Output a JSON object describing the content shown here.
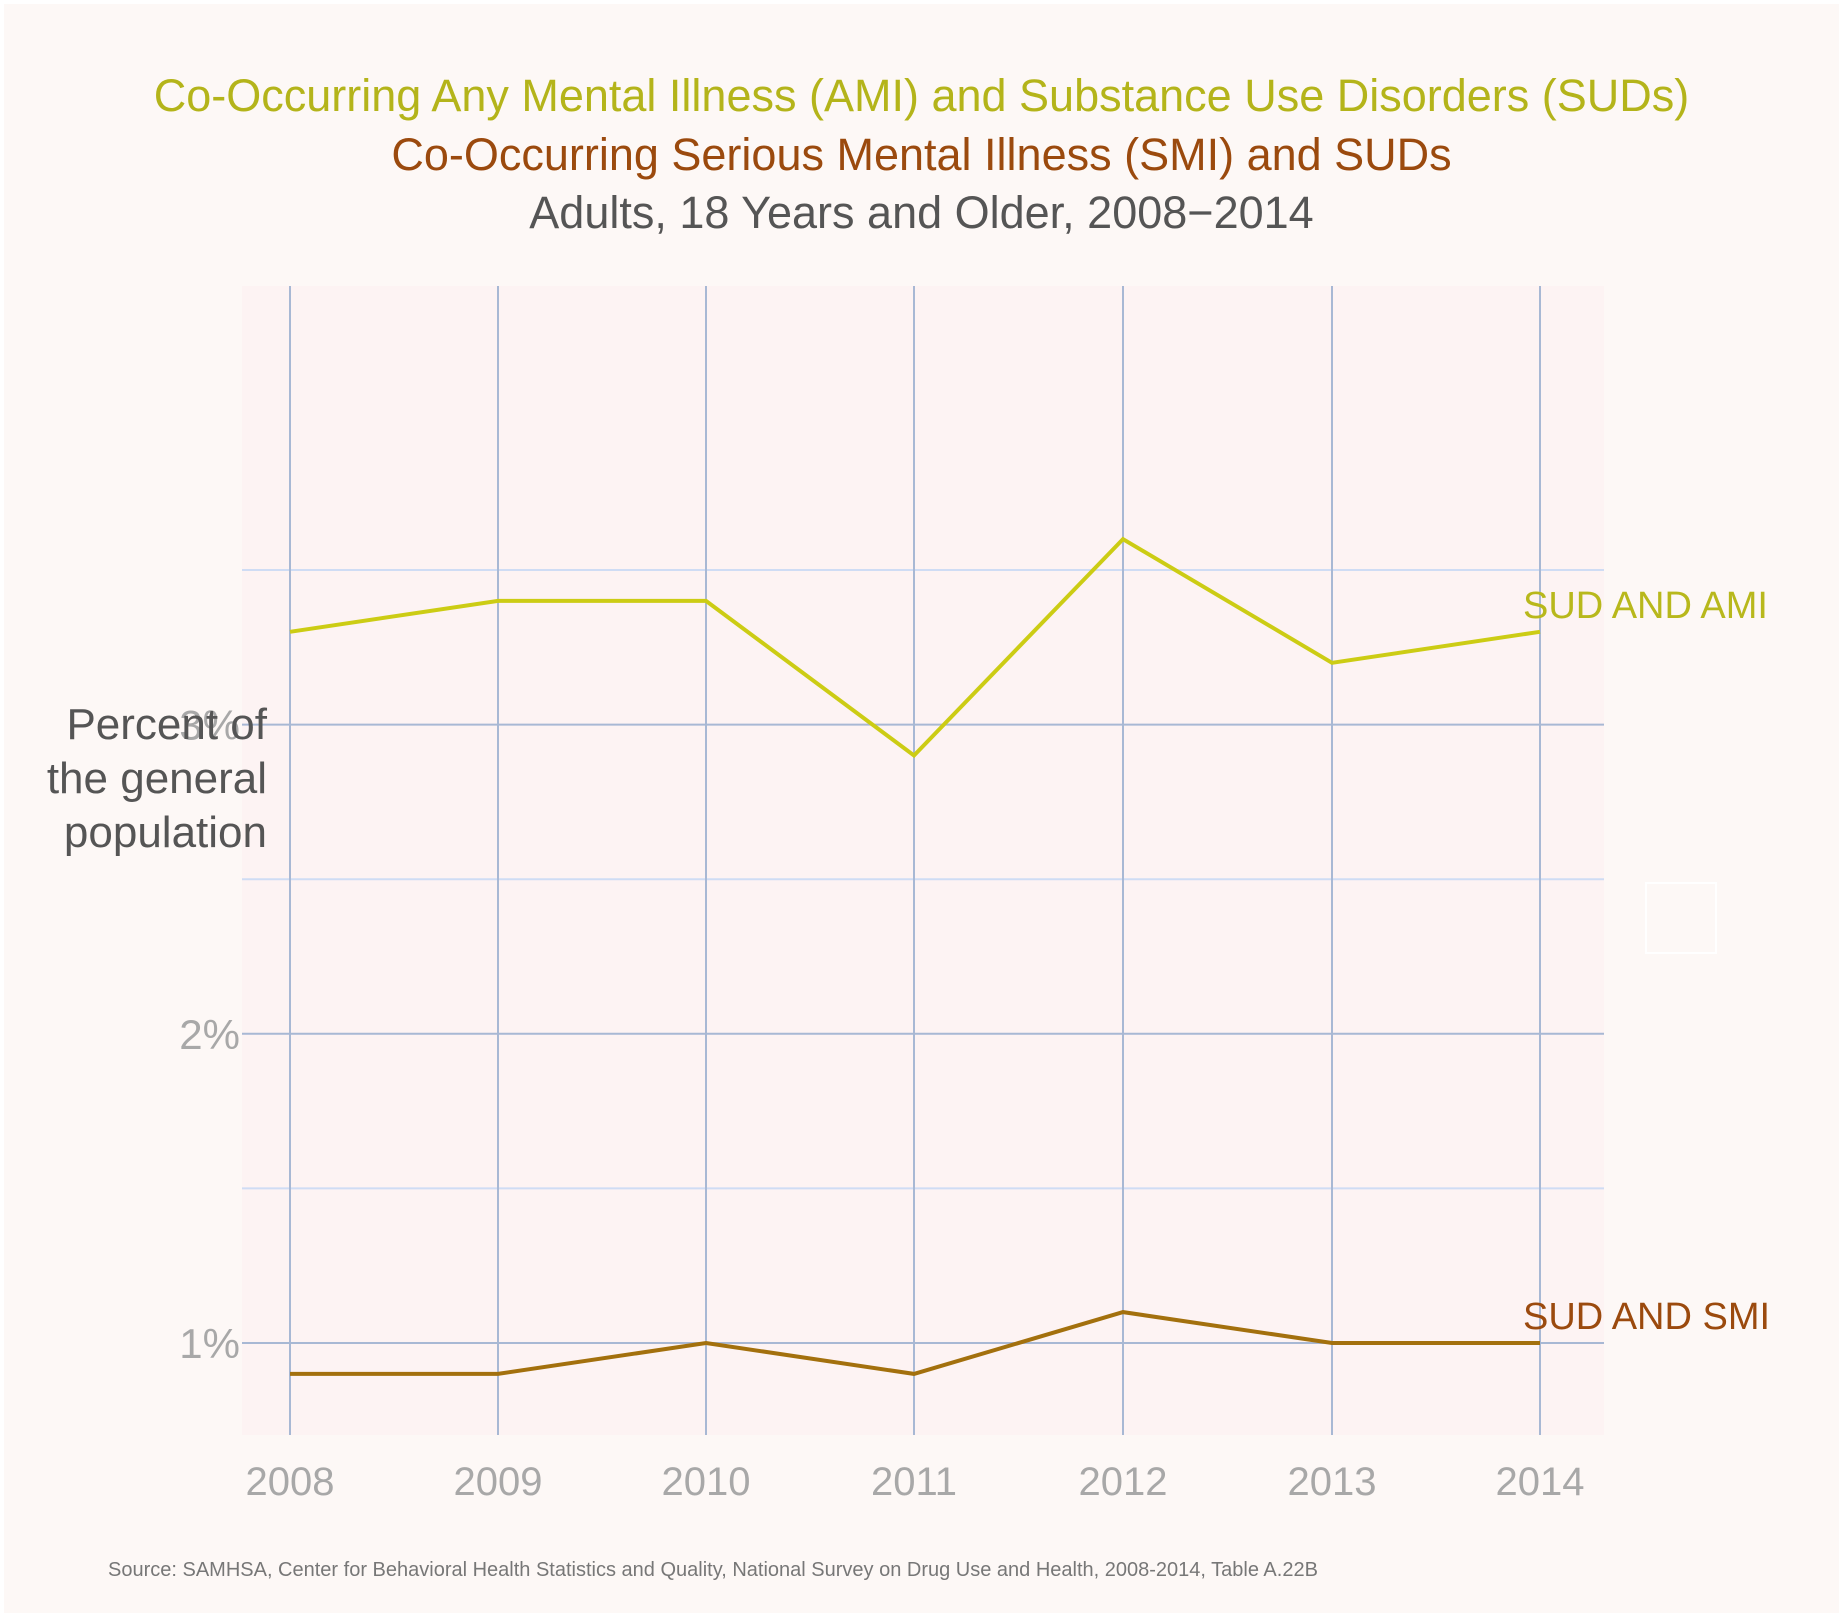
{
  "colors": {
    "background": "#fdf8f6",
    "plot_background": "#fdf3f3",
    "major_grid": "#a8b8d4",
    "minor_grid": "#cfdcf4",
    "tick_text": "#a8a8a8",
    "axis_title": "#555555",
    "ami_title": "#b4b41a",
    "smi_title": "#9b4a0e",
    "ami_line": "#cccc14",
    "smi_line": "#a3700d",
    "ami_label": "#b8b81c",
    "smi_label": "#9b4a0e"
  },
  "chart_data": {
    "type": "line",
    "title": "Co-Occurring Any Mental Illness (AMI) and Substance Use Disorders (SUDs)",
    "title_line2": "Co-Occurring Serious Mental Illness (SMI) and SUDs",
    "subtitle": "Adults, 18 Years and Older, 2008−2014",
    "xlabel": "",
    "ylabel": "Percent of\nthe general\npopulation",
    "source": "Source: SAMHSA, Center for Behavioral Health Statistics and Quality, National Survey on Drug Use and Health, 2008-2014, Table A.22B",
    "x": [
      "2008",
      "2009",
      "2010",
      "2011",
      "2012",
      "2013",
      "2014"
    ],
    "ylim": [
      0.8,
      3.8
    ],
    "yticks": [
      1,
      2,
      3
    ],
    "ytick_labels": [
      "1%",
      "2%",
      "3%"
    ],
    "grid": true,
    "legend": "direct labels at line ends (right)",
    "series": [
      {
        "name": "SUD AND AMI",
        "values": [
          3.3,
          3.4,
          3.4,
          2.9,
          3.6,
          3.2,
          3.3
        ]
      },
      {
        "name": "SUD AND SMI",
        "values": [
          0.9,
          0.9,
          1.0,
          0.9,
          1.1,
          1.0,
          1.0
        ]
      }
    ]
  }
}
